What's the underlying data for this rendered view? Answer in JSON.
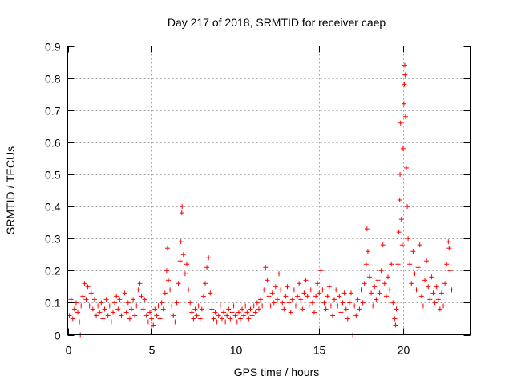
{
  "chart_data": {
    "type": "scatter",
    "title": "Day 217 of 2018, SRMTID for receiver caep",
    "xlabel": "GPS time / hours",
    "ylabel": "SRMTID / TECUs",
    "xlim": [
      0,
      24
    ],
    "ylim": [
      0,
      0.9
    ],
    "grid": true,
    "legend": "none",
    "x_ticks": [
      0,
      5,
      10,
      15,
      20
    ],
    "x_tick_labels": [
      "0",
      "5",
      "10",
      "15",
      "20"
    ],
    "y_ticks": [
      0,
      0.1,
      0.2,
      0.3,
      0.4,
      0.5,
      0.6,
      0.7,
      0.8,
      0.9
    ],
    "y_tick_labels": [
      "0",
      "0.1",
      "0.2",
      "0.3",
      "0.4",
      "0.5",
      "0.6",
      "0.7",
      "0.8",
      "0.9"
    ],
    "marker": "+",
    "color": "#ff0000",
    "series": [
      {
        "name": "SRMTID",
        "points": [
          [
            0.0,
            0.09
          ],
          [
            0.1,
            0.06
          ],
          [
            0.2,
            0.11
          ],
          [
            0.3,
            0.05
          ],
          [
            0.4,
            0.08
          ],
          [
            0.5,
            0.1
          ],
          [
            0.6,
            0.07
          ],
          [
            0.7,
            0.04
          ],
          [
            0.75,
            0.0
          ],
          [
            0.8,
            0.09
          ],
          [
            0.9,
            0.12
          ],
          [
            1.0,
            0.16
          ],
          [
            1.1,
            0.11
          ],
          [
            1.2,
            0.15
          ],
          [
            1.3,
            0.09
          ],
          [
            1.4,
            0.13
          ],
          [
            1.5,
            0.08
          ],
          [
            1.6,
            0.11
          ],
          [
            1.7,
            0.06
          ],
          [
            1.8,
            0.09
          ],
          [
            1.9,
            0.07
          ],
          [
            2.0,
            0.1
          ],
          [
            2.1,
            0.05
          ],
          [
            2.2,
            0.08
          ],
          [
            2.3,
            0.11
          ],
          [
            2.4,
            0.06
          ],
          [
            2.5,
            0.09
          ],
          [
            2.6,
            0.04
          ],
          [
            2.7,
            0.07
          ],
          [
            2.8,
            0.1
          ],
          [
            2.9,
            0.12
          ],
          [
            3.0,
            0.08
          ],
          [
            3.1,
            0.11
          ],
          [
            3.2,
            0.06
          ],
          [
            3.3,
            0.09
          ],
          [
            3.4,
            0.13
          ],
          [
            3.5,
            0.07
          ],
          [
            3.6,
            0.1
          ],
          [
            3.7,
            0.05
          ],
          [
            3.8,
            0.08
          ],
          [
            3.9,
            0.11
          ],
          [
            4.0,
            0.06
          ],
          [
            4.1,
            0.09
          ],
          [
            4.2,
            0.14
          ],
          [
            4.3,
            0.16
          ],
          [
            4.4,
            0.12
          ],
          [
            4.5,
            0.08
          ],
          [
            4.6,
            0.11
          ],
          [
            4.7,
            0.06
          ],
          [
            4.8,
            0.04
          ],
          [
            4.9,
            0.07
          ],
          [
            5.0,
            0.05
          ],
          [
            5.1,
            0.03
          ],
          [
            5.2,
            0.08
          ],
          [
            5.3,
            0.06
          ],
          [
            5.4,
            0.09
          ],
          [
            5.5,
            0.05
          ],
          [
            5.6,
            0.1
          ],
          [
            5.7,
            0.08
          ],
          [
            5.8,
            0.13
          ],
          [
            5.9,
            0.2
          ],
          [
            5.95,
            0.27
          ],
          [
            6.0,
            0.17
          ],
          [
            6.1,
            0.14
          ],
          [
            6.2,
            0.09
          ],
          [
            6.3,
            0.06
          ],
          [
            6.4,
            0.04
          ],
          [
            6.5,
            0.1
          ],
          [
            6.6,
            0.16
          ],
          [
            6.7,
            0.23
          ],
          [
            6.75,
            0.29
          ],
          [
            6.8,
            0.38
          ],
          [
            6.82,
            0.4
          ],
          [
            6.9,
            0.25
          ],
          [
            7.0,
            0.19
          ],
          [
            7.1,
            0.22
          ],
          [
            7.2,
            0.14
          ],
          [
            7.3,
            0.1
          ],
          [
            7.4,
            0.07
          ],
          [
            7.5,
            0.05
          ],
          [
            7.6,
            0.08
          ],
          [
            7.7,
            0.06
          ],
          [
            7.8,
            0.09
          ],
          [
            7.9,
            0.05
          ],
          [
            8.0,
            0.08
          ],
          [
            8.1,
            0.12
          ],
          [
            8.2,
            0.16
          ],
          [
            8.3,
            0.21
          ],
          [
            8.4,
            0.24
          ],
          [
            8.5,
            0.13
          ],
          [
            8.6,
            0.08
          ],
          [
            8.7,
            0.05
          ],
          [
            8.8,
            0.07
          ],
          [
            8.9,
            0.04
          ],
          [
            9.0,
            0.06
          ],
          [
            9.1,
            0.09
          ],
          [
            9.2,
            0.05
          ],
          [
            9.3,
            0.07
          ],
          [
            9.4,
            0.04
          ],
          [
            9.5,
            0.06
          ],
          [
            9.6,
            0.08
          ],
          [
            9.7,
            0.05
          ],
          [
            9.8,
            0.07
          ],
          [
            9.9,
            0.09
          ],
          [
            10.0,
            0.06
          ],
          [
            10.1,
            0.04
          ],
          [
            10.2,
            0.07
          ],
          [
            10.3,
            0.05
          ],
          [
            10.4,
            0.08
          ],
          [
            10.5,
            0.06
          ],
          [
            10.6,
            0.09
          ],
          [
            10.7,
            0.07
          ],
          [
            10.8,
            0.05
          ],
          [
            10.9,
            0.08
          ],
          [
            11.0,
            0.06
          ],
          [
            11.1,
            0.09
          ],
          [
            11.2,
            0.07
          ],
          [
            11.3,
            0.1
          ],
          [
            11.4,
            0.08
          ],
          [
            11.5,
            0.11
          ],
          [
            11.6,
            0.09
          ],
          [
            11.7,
            0.14
          ],
          [
            11.8,
            0.21
          ],
          [
            11.9,
            0.17
          ],
          [
            12.0,
            0.12
          ],
          [
            12.1,
            0.09
          ],
          [
            12.2,
            0.13
          ],
          [
            12.3,
            0.1
          ],
          [
            12.4,
            0.15
          ],
          [
            12.5,
            0.11
          ],
          [
            12.6,
            0.19
          ],
          [
            12.7,
            0.14
          ],
          [
            12.8,
            0.1
          ],
          [
            12.9,
            0.08
          ],
          [
            13.0,
            0.12
          ],
          [
            13.1,
            0.15
          ],
          [
            13.2,
            0.1
          ],
          [
            13.3,
            0.07
          ],
          [
            13.4,
            0.11
          ],
          [
            13.5,
            0.14
          ],
          [
            13.6,
            0.09
          ],
          [
            13.7,
            0.12
          ],
          [
            13.8,
            0.16
          ],
          [
            13.9,
            0.11
          ],
          [
            14.0,
            0.08
          ],
          [
            14.1,
            0.13
          ],
          [
            14.2,
            0.17
          ],
          [
            14.3,
            0.12
          ],
          [
            14.4,
            0.09
          ],
          [
            14.5,
            0.14
          ],
          [
            14.6,
            0.1
          ],
          [
            14.7,
            0.07
          ],
          [
            14.8,
            0.12
          ],
          [
            14.9,
            0.16
          ],
          [
            15.0,
            0.13
          ],
          [
            15.1,
            0.2
          ],
          [
            15.2,
            0.14
          ],
          [
            15.3,
            0.1
          ],
          [
            15.4,
            0.08
          ],
          [
            15.5,
            0.12
          ],
          [
            15.6,
            0.15
          ],
          [
            15.7,
            0.09
          ],
          [
            15.8,
            0.06
          ],
          [
            15.9,
            0.11
          ],
          [
            16.0,
            0.14
          ],
          [
            16.1,
            0.09
          ],
          [
            16.2,
            0.12
          ],
          [
            16.3,
            0.07
          ],
          [
            16.4,
            0.1
          ],
          [
            16.5,
            0.13
          ],
          [
            16.6,
            0.08
          ],
          [
            16.7,
            0.05
          ],
          [
            16.8,
            0.1
          ],
          [
            16.9,
            0.13
          ],
          [
            17.0,
            0.0
          ],
          [
            17.1,
            0.09
          ],
          [
            17.2,
            0.06
          ],
          [
            17.3,
            0.11
          ],
          [
            17.4,
            0.08
          ],
          [
            17.5,
            0.14
          ],
          [
            17.6,
            0.1
          ],
          [
            17.7,
            0.16
          ],
          [
            17.8,
            0.22
          ],
          [
            17.85,
            0.33
          ],
          [
            17.9,
            0.26
          ],
          [
            18.0,
            0.18
          ],
          [
            18.1,
            0.13
          ],
          [
            18.2,
            0.09
          ],
          [
            18.3,
            0.15
          ],
          [
            18.4,
            0.11
          ],
          [
            18.5,
            0.17
          ],
          [
            18.6,
            0.13
          ],
          [
            18.7,
            0.2
          ],
          [
            18.8,
            0.28
          ],
          [
            18.9,
            0.16
          ],
          [
            19.0,
            0.12
          ],
          [
            19.1,
            0.18
          ],
          [
            19.2,
            0.14
          ],
          [
            19.3,
            0.22
          ],
          [
            19.4,
            0.1
          ],
          [
            19.5,
            0.05
          ],
          [
            19.55,
            0.03
          ],
          [
            19.6,
            0.08
          ],
          [
            19.7,
            0.22
          ],
          [
            19.75,
            0.32
          ],
          [
            19.8,
            0.42
          ],
          [
            19.82,
            0.5
          ],
          [
            19.85,
            0.66
          ],
          [
            19.9,
            0.36
          ],
          [
            19.95,
            0.28
          ],
          [
            20.0,
            0.58
          ],
          [
            20.05,
            0.72
          ],
          [
            20.08,
            0.78
          ],
          [
            20.1,
            0.84
          ],
          [
            20.12,
            0.81
          ],
          [
            20.15,
            0.68
          ],
          [
            20.2,
            0.52
          ],
          [
            20.25,
            0.4
          ],
          [
            20.3,
            0.3
          ],
          [
            20.4,
            0.22
          ],
          [
            20.5,
            0.16
          ],
          [
            20.6,
            0.26
          ],
          [
            20.7,
            0.19
          ],
          [
            20.8,
            0.14
          ],
          [
            20.9,
            0.21
          ],
          [
            21.0,
            0.28
          ],
          [
            21.1,
            0.12
          ],
          [
            21.2,
            0.09
          ],
          [
            21.3,
            0.17
          ],
          [
            21.4,
            0.23
          ],
          [
            21.5,
            0.15
          ],
          [
            21.6,
            0.11
          ],
          [
            21.7,
            0.18
          ],
          [
            21.8,
            0.13
          ],
          [
            21.9,
            0.1
          ],
          [
            22.0,
            0.15
          ],
          [
            22.1,
            0.11
          ],
          [
            22.2,
            0.08
          ],
          [
            22.3,
            0.13
          ],
          [
            22.4,
            0.09
          ],
          [
            22.5,
            0.16
          ],
          [
            22.6,
            0.22
          ],
          [
            22.7,
            0.29
          ],
          [
            22.75,
            0.27
          ],
          [
            22.8,
            0.2
          ],
          [
            22.9,
            0.14
          ]
        ]
      }
    ]
  }
}
